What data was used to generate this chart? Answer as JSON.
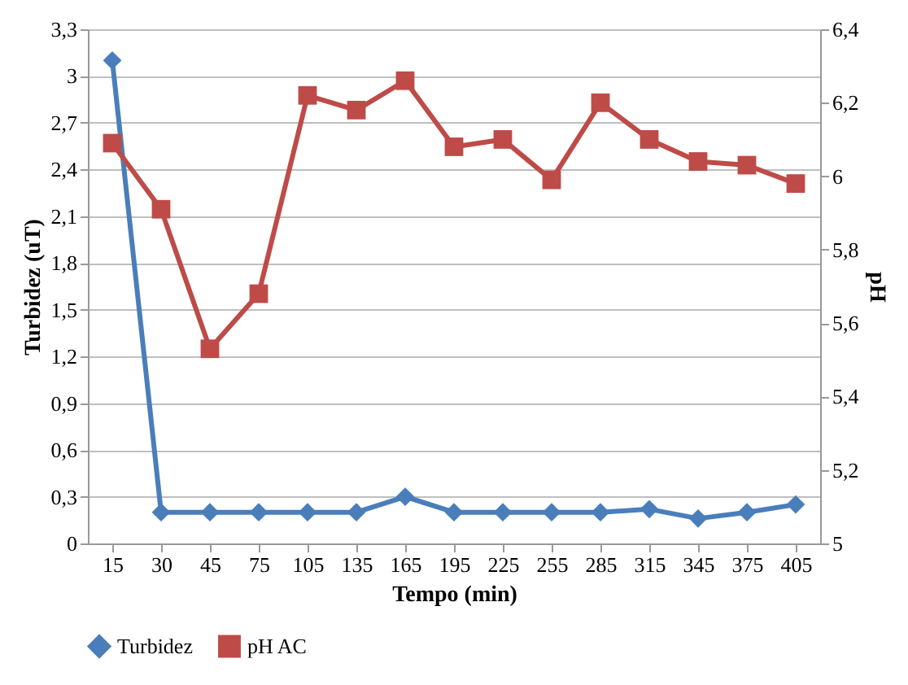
{
  "chart_data": {
    "type": "line",
    "xlabel": "Tempo (min)",
    "ylabel": "Turbidez (uT)",
    "y2label": "pH",
    "categories": [
      "15",
      "30",
      "45",
      "75",
      "105",
      "135",
      "165",
      "195",
      "225",
      "255",
      "285",
      "315",
      "345",
      "375",
      "405"
    ],
    "series": [
      {
        "name": "Turbidez",
        "color": "#4a7ebb",
        "marker": "diamond",
        "values": [
          3.1,
          0.2,
          0.2,
          0.2,
          0.2,
          0.2,
          0.3,
          0.2,
          0.2,
          0.2,
          0.2,
          0.22,
          0.16,
          0.2,
          0.25
        ]
      },
      {
        "name": "pH AC",
        "color": "#be4b48",
        "marker": "square",
        "axis": "y2",
        "values": [
          6.09,
          5.91,
          5.53,
          5.68,
          6.22,
          6.18,
          6.26,
          6.08,
          6.1,
          5.99,
          6.2,
          6.1,
          6.04,
          6.03,
          5.98
        ]
      }
    ],
    "ylim": [
      0,
      3.3
    ],
    "yticks": [
      0,
      {
        "value": 0.3,
        "label": "0,3"
      },
      {
        "value": 0.6,
        "label": "0,6"
      },
      {
        "value": 0.9,
        "label": "0,9"
      },
      {
        "value": 1.2,
        "label": "1,2"
      },
      {
        "value": 1.5,
        "label": "1,5"
      },
      {
        "value": 1.8,
        "label": "1,8"
      },
      {
        "value": 2.1,
        "label": "2,1"
      },
      {
        "value": 2.4,
        "label": "2,4"
      },
      {
        "value": 2.7,
        "label": "2,7"
      },
      3,
      {
        "value": 3.3,
        "label": "3,3"
      }
    ],
    "y2lim": [
      5,
      6.4
    ],
    "y2ticks": [
      5,
      {
        "value": 5.2,
        "label": "5,2"
      },
      {
        "value": 5.4,
        "label": "5,4"
      },
      {
        "value": 5.6,
        "label": "5,6"
      },
      {
        "value": 5.8,
        "label": "5,8"
      },
      6,
      {
        "value": 6.2,
        "label": "6,2"
      },
      {
        "value": 6.4,
        "label": "6,4"
      }
    ],
    "grid": "y",
    "legend": "bottom",
    "line_style": "solid"
  }
}
